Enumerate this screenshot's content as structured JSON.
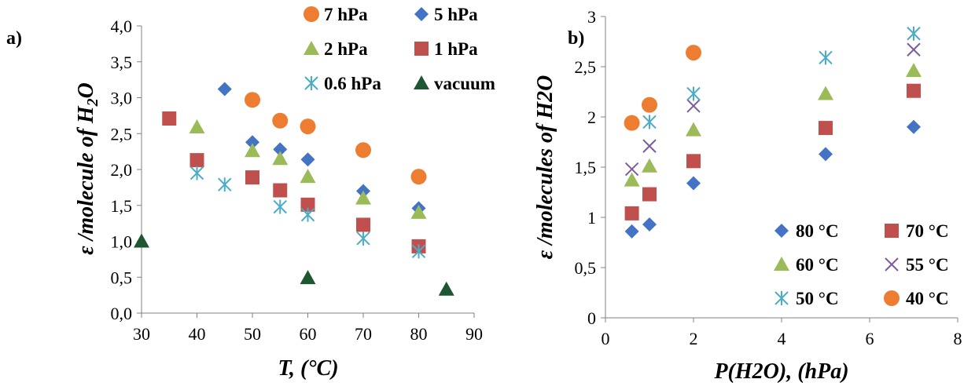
{
  "chart_data": [
    {
      "type": "scatter",
      "panel_label": "a)",
      "xlabel": "T, (°C)",
      "ylabel": "ε /molecule of H",
      "ylabel_sub": "2",
      "ylabel_tail": "O",
      "xlim": [
        30,
        90
      ],
      "ylim": [
        0,
        4
      ],
      "xticks": [
        30,
        40,
        50,
        60,
        70,
        80,
        90
      ],
      "yticks": [
        0,
        0.5,
        1,
        1.5,
        2,
        2.5,
        3,
        3.5,
        4
      ],
      "ytick_labels": [
        "0,0",
        "0,5",
        "1,0",
        "1,5",
        "2,0",
        "2,5",
        "3,0",
        "3,5",
        "4,0"
      ],
      "grid": false,
      "legend_position": "top-right",
      "series": [
        {
          "name": "7 hPa",
          "marker": "circle",
          "color": "#ED7D31",
          "x": [
            50,
            55,
            60,
            70,
            80
          ],
          "y": [
            2.97,
            2.68,
            2.6,
            2.27,
            1.9
          ]
        },
        {
          "name": "5 hPa",
          "marker": "diamond",
          "color": "#4472C4",
          "x": [
            45,
            50,
            55,
            60,
            70,
            80
          ],
          "y": [
            3.12,
            2.38,
            2.28,
            2.14,
            1.7,
            1.46
          ]
        },
        {
          "name": "2 hPa",
          "marker": "triangle",
          "color": "#9BBB59",
          "x": [
            40,
            50,
            55,
            60,
            70,
            80
          ],
          "y": [
            2.59,
            2.26,
            2.15,
            1.9,
            1.6,
            1.4
          ]
        },
        {
          "name": "1 hPa",
          "marker": "square",
          "color": "#C0504D",
          "x": [
            35,
            40,
            50,
            55,
            60,
            70,
            80
          ],
          "y": [
            2.71,
            2.13,
            1.89,
            1.71,
            1.51,
            1.23,
            0.93
          ]
        },
        {
          "name": "0.6 hPa",
          "marker": "asterisk",
          "color": "#4BACC6",
          "x": [
            40,
            45,
            55,
            60,
            70,
            80
          ],
          "y": [
            1.95,
            1.79,
            1.48,
            1.37,
            1.04,
            0.86
          ]
        },
        {
          "name": "vacuum",
          "marker": "triangle",
          "color": "#1E5631",
          "x": [
            30,
            60,
            85
          ],
          "y": [
            1.0,
            0.49,
            0.33
          ]
        }
      ]
    },
    {
      "type": "scatter",
      "panel_label": "b)",
      "xlabel": "P(H2O), (hPa)",
      "ylabel": "ε /molecules of H2O",
      "xlim": [
        0,
        8
      ],
      "ylim": [
        0,
        3
      ],
      "xticks": [
        0,
        2,
        4,
        6,
        8
      ],
      "yticks": [
        0,
        0.5,
        1,
        1.5,
        2,
        2.5,
        3
      ],
      "ytick_labels": [
        "0",
        "0,5",
        "1",
        "1,5",
        "2",
        "2,5",
        "3"
      ],
      "grid": false,
      "legend_position": "bottom-right",
      "series": [
        {
          "name": "80 °C",
          "marker": "diamond",
          "color": "#4472C4",
          "x": [
            0.6,
            1,
            2,
            5,
            7
          ],
          "y": [
            0.86,
            0.93,
            1.34,
            1.63,
            1.9
          ]
        },
        {
          "name": "70 °C",
          "marker": "square",
          "color": "#C0504D",
          "x": [
            0.6,
            1,
            2,
            5,
            7
          ],
          "y": [
            1.04,
            1.23,
            1.56,
            1.89,
            2.26
          ]
        },
        {
          "name": "60 °C",
          "marker": "triangle",
          "color": "#9BBB59",
          "x": [
            0.6,
            1,
            2,
            5,
            7
          ],
          "y": [
            1.37,
            1.51,
            1.87,
            2.23,
            2.46
          ]
        },
        {
          "name": "55 °C",
          "marker": "cross",
          "color": "#7E5D9A",
          "x": [
            0.6,
            1,
            2,
            7
          ],
          "y": [
            1.48,
            1.71,
            2.11,
            2.67
          ]
        },
        {
          "name": "50 °C",
          "marker": "asterisk",
          "color": "#4BACC6",
          "x": [
            1,
            2,
            5,
            7
          ],
          "y": [
            1.95,
            2.23,
            2.59,
            2.83
          ]
        },
        {
          "name": "40 °C",
          "marker": "circle",
          "color": "#ED7D31",
          "x": [
            0.6,
            1,
            2
          ],
          "y": [
            1.94,
            2.12,
            2.64
          ]
        }
      ]
    }
  ]
}
